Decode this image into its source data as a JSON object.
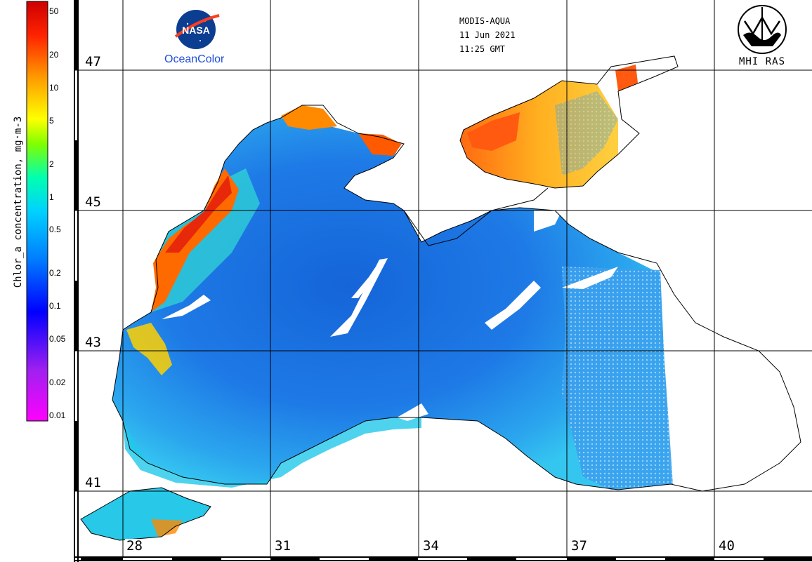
{
  "header": {
    "sensor": "MODIS-AQUA",
    "date": "11 Jun 2021",
    "time": "11:25 GMT"
  },
  "logos": {
    "nasa_text": "NASA",
    "oceancolor_text": "OceanColor",
    "mhi_text": "MHI RAS"
  },
  "colorbar": {
    "title": "Chlor_a concentration, mg·m-3",
    "ticks": [
      "50",
      "20",
      "10",
      "5",
      "2",
      "1",
      "0.5",
      "0.2",
      "0.1",
      "0.05",
      "0.02",
      "0.01"
    ],
    "scale": "log",
    "colors": [
      "#ff00ff",
      "#8a2be2",
      "#0000ff",
      "#0078ff",
      "#00d2ff",
      "#00ffb0",
      "#7fff00",
      "#ffff00",
      "#ff9900",
      "#ff2200",
      "#cc0000"
    ]
  },
  "grid": {
    "latitude_labels": [
      "47",
      "45",
      "43",
      "41"
    ],
    "longitude_labels": [
      "28",
      "31",
      "34",
      "37",
      "40"
    ]
  },
  "map": {
    "region": "Black Sea and Sea of Azov",
    "colors": {
      "coastline": "#000000",
      "open_sea": "#1e7ae6",
      "gulf_center": "#1565d8",
      "mid_chlorophyll": "#35b8f0",
      "shelf": "#20d6e8",
      "coastal_high": "#ff7a00",
      "coastal_peak": "#e8280a",
      "azov": "#ffb020",
      "cloud_gap": "#ffffff"
    }
  }
}
